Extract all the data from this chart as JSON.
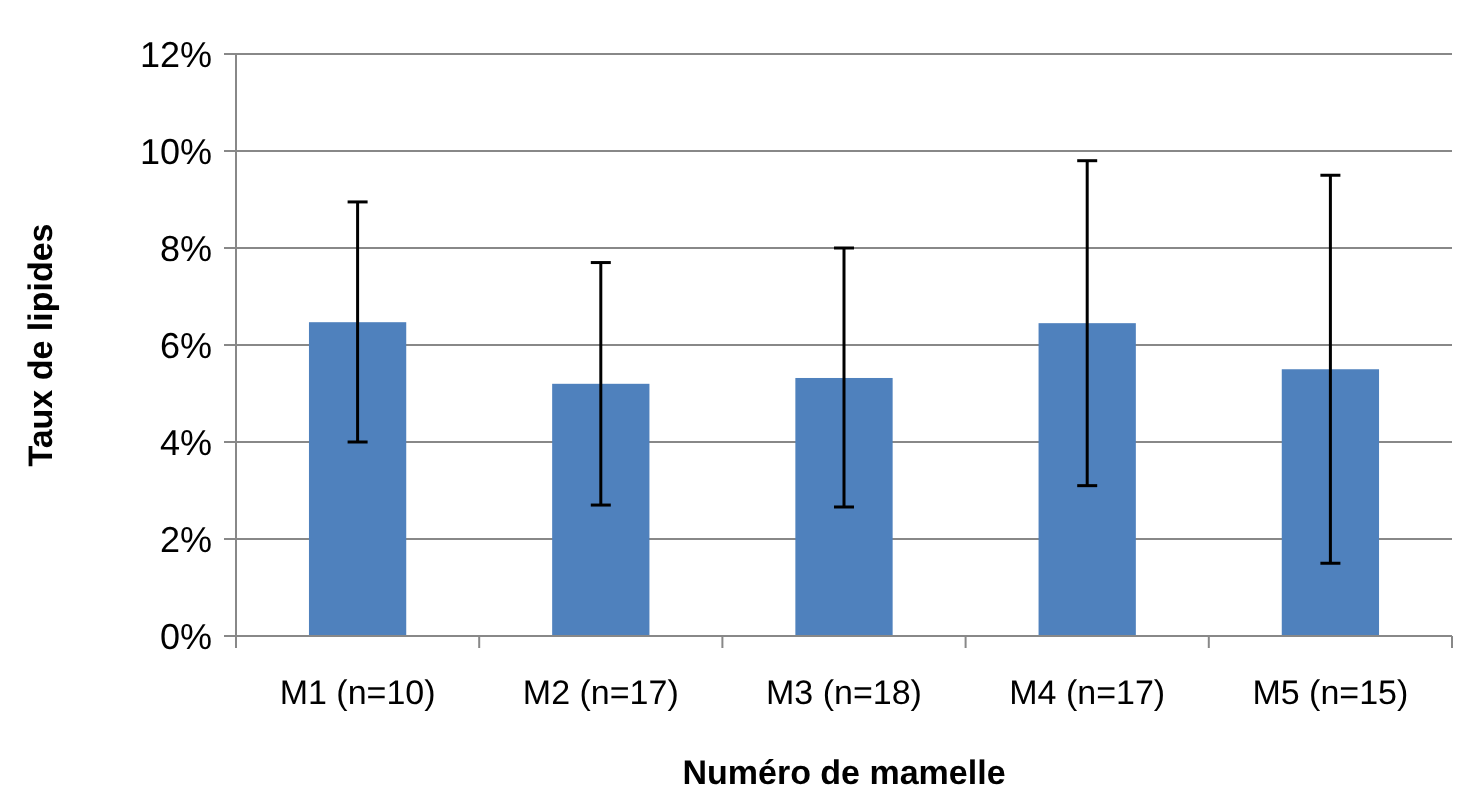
{
  "chart_data": {
    "type": "bar",
    "xlabel": "Numéro de mamelle",
    "ylabel": "Taux de lipides",
    "categories": [
      "M1 (n=10)",
      "M2 (n=17)",
      "M3 (n=18)",
      "M4 (n=17)",
      "M5 (n=15)"
    ],
    "values": [
      6.47,
      5.2,
      5.32,
      6.45,
      5.5
    ],
    "errors": [
      [
        4.0,
        8.95
      ],
      [
        2.7,
        7.7
      ],
      [
        2.66,
        8.0
      ],
      [
        3.1,
        9.8
      ],
      [
        1.5,
        9.5
      ]
    ],
    "color": "#4f81bd",
    "ylim": [
      0,
      12
    ],
    "yticks": [
      {
        "value": 0,
        "label": "0%"
      },
      {
        "value": 2,
        "label": "2%"
      },
      {
        "value": 4,
        "label": "4%"
      },
      {
        "value": 6,
        "label": "6%"
      },
      {
        "value": 8,
        "label": "8%"
      },
      {
        "value": 10,
        "label": "10%"
      },
      {
        "value": 12,
        "label": "12%"
      }
    ],
    "grid": "y"
  }
}
